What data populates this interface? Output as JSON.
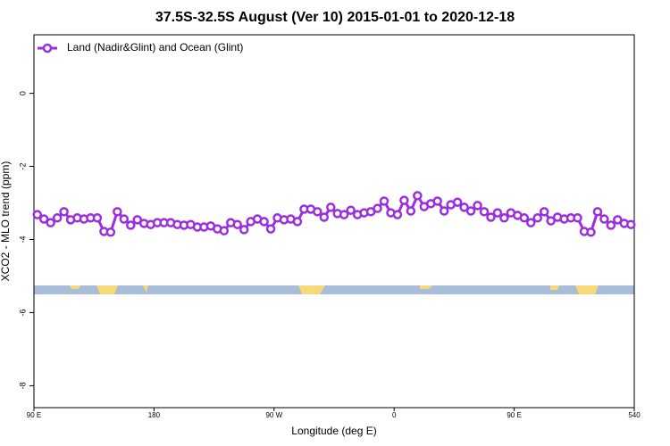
{
  "chart_data": {
    "type": "line",
    "title": "37.5S-32.5S August (Ver 10)   2015-01-01 to 2020-12-18",
    "xlabel": "Longitude (deg E)",
    "ylabel": "XCO2 - MLO trend (ppm)",
    "x": [
      92.5,
      97.5,
      102.5,
      107.5,
      112.5,
      117.5,
      122.5,
      127.5,
      132.5,
      137.5,
      142.5,
      147.5,
      152.5,
      157.5,
      162.5,
      167.5,
      172.5,
      177.5,
      182.5,
      187.5,
      192.5,
      197.5,
      202.5,
      207.5,
      212.5,
      217.5,
      222.5,
      227.5,
      232.5,
      237.5,
      242.5,
      247.5,
      252.5,
      257.5,
      262.5,
      267.5,
      272.5,
      277.5,
      282.5,
      287.5,
      292.5,
      297.5,
      302.5,
      307.5,
      312.5,
      317.5,
      322.5,
      327.5,
      332.5,
      337.5,
      342.5,
      347.5,
      352.5,
      357.5,
      362.5,
      367.5,
      372.5,
      377.5,
      382.5,
      387.5,
      392.5,
      397.5,
      402.5,
      407.5,
      412.5,
      417.5,
      422.5,
      427.5,
      432.5,
      437.5,
      442.5,
      447.5,
      452.5,
      457.5,
      462.5,
      467.5,
      472.5,
      477.5,
      482.5,
      487.5,
      492.5,
      497.5,
      502.5,
      507.5,
      512.5,
      517.5,
      522.5,
      527.5,
      532.5,
      537.5
    ],
    "series": [
      {
        "name": "Land (Nadir&Glint) and Ocean (Glint)",
        "color": "#9b2fe0",
        "values": [
          -3.32,
          -3.44,
          -3.54,
          -3.41,
          -3.24,
          -3.46,
          -3.41,
          -3.44,
          -3.41,
          -3.41,
          -3.78,
          -3.8,
          -3.24,
          -3.44,
          -3.61,
          -3.46,
          -3.56,
          -3.59,
          -3.54,
          -3.54,
          -3.54,
          -3.59,
          -3.61,
          -3.59,
          -3.66,
          -3.66,
          -3.63,
          -3.71,
          -3.76,
          -3.54,
          -3.59,
          -3.73,
          -3.51,
          -3.44,
          -3.51,
          -3.71,
          -3.41,
          -3.46,
          -3.44,
          -3.51,
          -3.17,
          -3.17,
          -3.24,
          -3.39,
          -3.12,
          -3.29,
          -3.32,
          -3.2,
          -3.32,
          -3.27,
          -3.24,
          -3.15,
          -2.95,
          -3.27,
          -3.32,
          -2.93,
          -3.22,
          -2.8,
          -3.1,
          -3.02,
          -2.95,
          -3.22,
          -3.05,
          -2.98,
          -3.12,
          -3.22,
          -3.07,
          -3.24,
          -3.39,
          -3.27,
          -3.41,
          -3.27,
          -3.34,
          -3.41,
          -3.54,
          -3.41,
          -3.24,
          -3.49,
          -3.39,
          -3.44,
          -3.41,
          -3.41,
          -3.78,
          -3.8,
          -3.24,
          -3.44,
          -3.61,
          -3.46,
          -3.56,
          -3.59
        ]
      }
    ],
    "xlim": [
      90,
      540
    ],
    "xticks": [
      {
        "value": 90,
        "label": "90 E"
      },
      180,
      {
        "value": 270,
        "label": "90 W"
      },
      {
        "value": 360,
        "label": "0"
      },
      {
        "value": 450,
        "label": "90 E"
      },
      540
    ],
    "ylim": [
      -8.6,
      1.6
    ],
    "yticks": [
      -8,
      -6,
      -4,
      -2,
      0
    ],
    "legend": "top-left",
    "grid": false
  }
}
